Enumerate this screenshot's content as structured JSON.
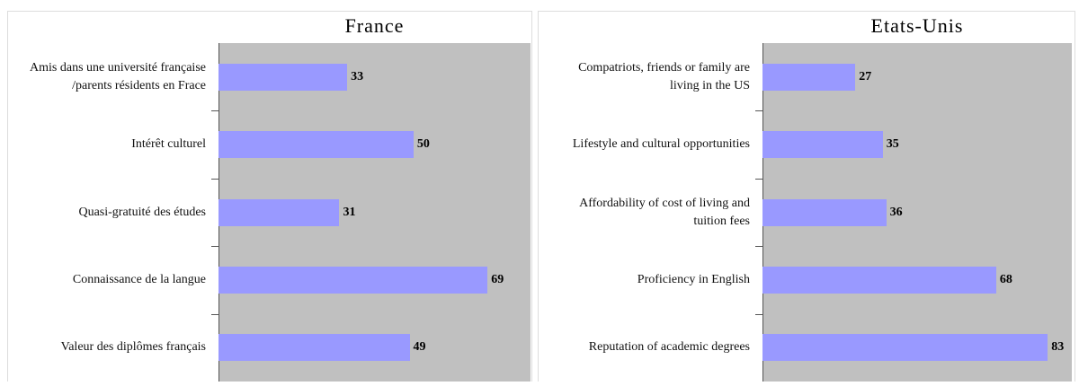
{
  "chart_data": [
    {
      "type": "barh",
      "title": "France",
      "categories": [
        "Amis dans une université française /parents résidents en Frace",
        "Intérêt culturel",
        "Quasi-gratuité des études",
        "Connaissance de la langue",
        "Valeur des diplômes français"
      ],
      "values": [
        33,
        50,
        31,
        69,
        49
      ],
      "color": "#9999ff",
      "xlim": [
        0,
        80
      ]
    },
    {
      "type": "barh",
      "title": "Etats-Unis",
      "categories": [
        "Compatriots, friends or family are living in the US",
        "Lifestyle and cultural opportunities",
        "Affordability of cost of living and tuition fees",
        "Proficiency in English",
        "Reputation of academic degrees"
      ],
      "values": [
        27,
        35,
        36,
        68,
        83
      ],
      "color": "#9999ff",
      "xlim": [
        0,
        90
      ]
    }
  ]
}
